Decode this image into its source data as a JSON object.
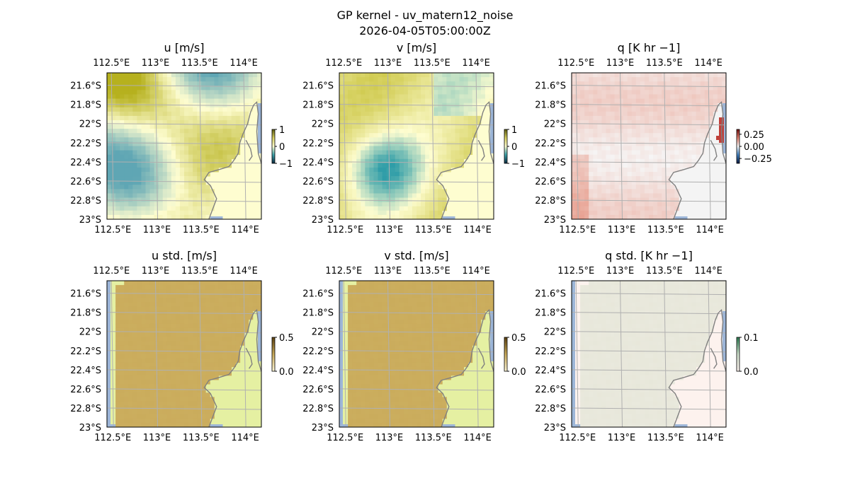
{
  "figure": {
    "title_line1": "GP kernel - uv_matern12_noise",
    "title_line2": "2026-04-05T05:00:00Z"
  },
  "colors": {
    "land": "#fefdd0",
    "ocean": "#9db6d8",
    "coast": "#808080",
    "grid": "#b0b0b0",
    "u_pos": "#b6b11e",
    "u_neg": "#5fa6b4",
    "v_pos": "#c8c23a",
    "v_neg": "#2f9da8",
    "q_pos": "#e3806a",
    "q_neg": "#3c80c0",
    "q_bar": "#c0403a",
    "std_field": "#c9aa5a",
    "std_land": "#e5f0a2",
    "qstd_field": "#e6e6d8",
    "qstd_land": "#fdf2ee"
  },
  "axes": {
    "lon_ticks": [
      "112.5°E",
      "113°E",
      "113.5°E",
      "114°E"
    ],
    "lat_ticks": [
      "21.6°S",
      "21.8°S",
      "22°S",
      "22.2°S",
      "22.4°S",
      "22.6°S",
      "22.8°S",
      "23°S"
    ],
    "lon_values": [
      112.5,
      113.0,
      113.5,
      114.0
    ],
    "lat_values": [
      -21.6,
      -21.8,
      -22.0,
      -22.2,
      -22.4,
      -22.6,
      -22.8,
      -23.0
    ],
    "lon_range": [
      112.45,
      114.2
    ],
    "lat_range": [
      -23.0,
      -21.47
    ]
  },
  "chart_data": [
    {
      "type": "heatmap",
      "title": "u [m/s]",
      "colorbar_ticks": [
        "1",
        "0",
        "−1"
      ],
      "clim": [
        -1,
        1
      ]
    },
    {
      "type": "heatmap",
      "title": "v [m/s]",
      "colorbar_ticks": [
        "1",
        "0",
        "−1"
      ],
      "clim": [
        -1,
        1
      ]
    },
    {
      "type": "heatmap",
      "title": "q [K hr −1]",
      "colorbar_ticks": [
        "0.25",
        "0.00",
        "−0.25"
      ],
      "clim": [
        -0.35,
        0.35
      ]
    },
    {
      "type": "heatmap",
      "title": "u std. [m/s]",
      "colorbar_ticks": [
        "0.5",
        "0.0"
      ],
      "clim": [
        0,
        0.5
      ]
    },
    {
      "type": "heatmap",
      "title": "v std. [m/s]",
      "colorbar_ticks": [
        "0.5",
        "0.0"
      ],
      "clim": [
        0,
        0.5
      ]
    },
    {
      "type": "heatmap",
      "title": "q std. [K hr −1]",
      "colorbar_ticks": [
        "0.1",
        "0.0"
      ],
      "clim": [
        0,
        0.1
      ]
    }
  ]
}
